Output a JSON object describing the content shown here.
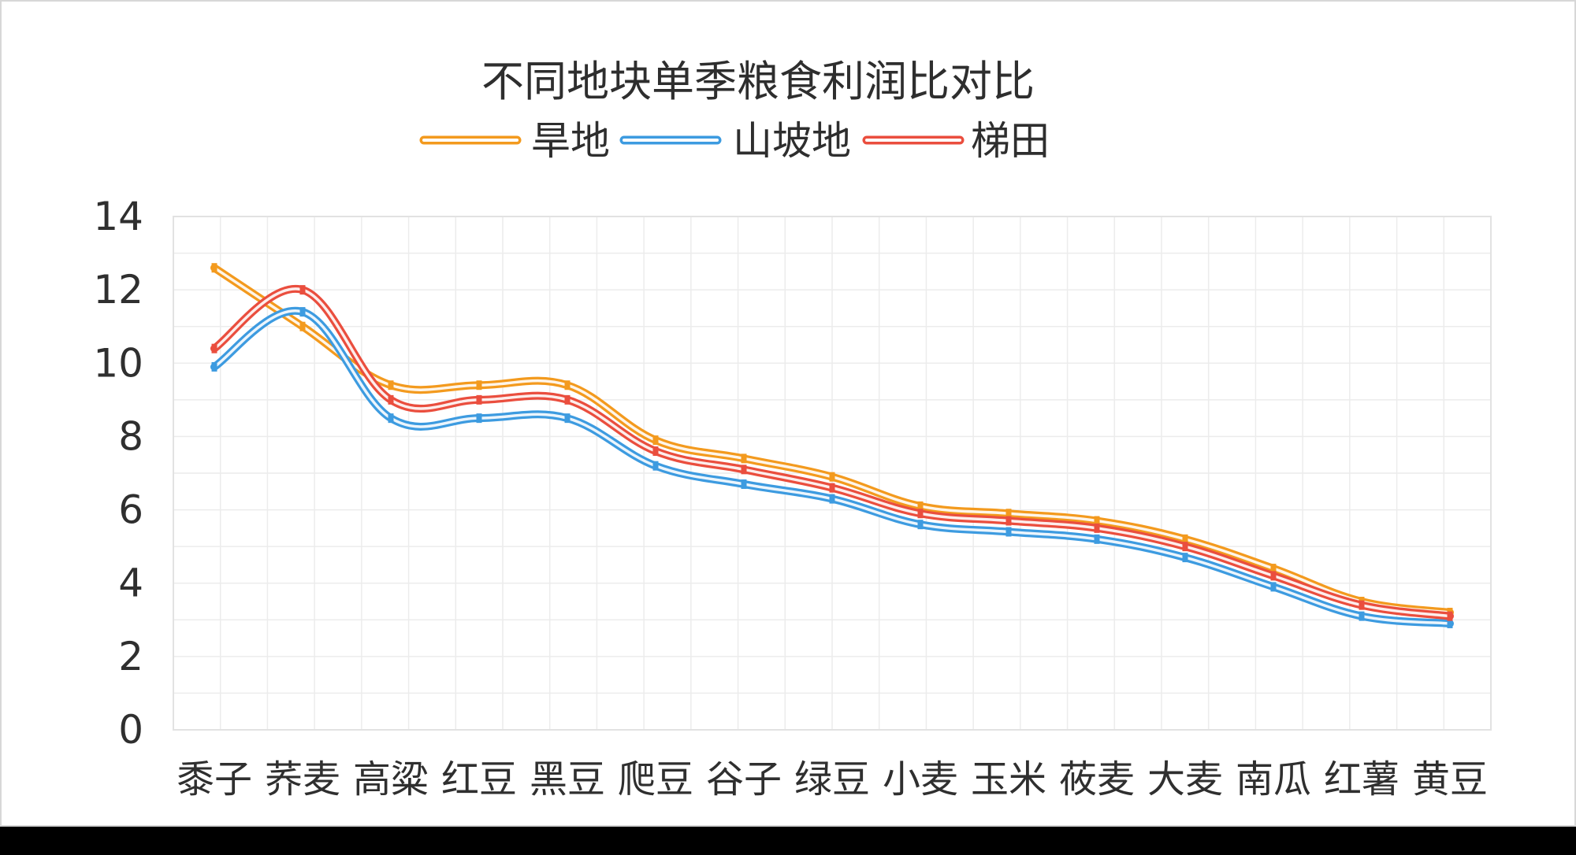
{
  "chart_data": {
    "type": "line",
    "title": "不同地块单季粮食利润比对比",
    "xlabel": "",
    "ylabel": "",
    "ylim": [
      0,
      14
    ],
    "yticks": [
      0,
      2,
      4,
      6,
      8,
      10,
      12,
      14
    ],
    "grid": true,
    "legend_position": "top",
    "smooth": true,
    "categories": [
      "黍子",
      "荞麦",
      "高粱",
      "红豆",
      "黑豆",
      "爬豆",
      "谷子",
      "绿豆",
      "小麦",
      "玉米",
      "莜麦",
      "大麦",
      "南瓜",
      "红薯",
      "黄豆"
    ],
    "series": [
      {
        "name": "旱地",
        "color": "#f39a1e",
        "values": [
          12.6,
          11.0,
          9.4,
          9.4,
          9.4,
          7.9,
          7.4,
          6.9,
          6.1,
          5.9,
          5.7,
          5.2,
          4.4,
          3.5,
          3.2
        ]
      },
      {
        "name": "山坡地",
        "color": "#3d9be0",
        "values": [
          9.9,
          11.4,
          8.5,
          8.5,
          8.5,
          7.2,
          6.7,
          6.3,
          5.6,
          5.4,
          5.2,
          4.7,
          3.9,
          3.1,
          2.9
        ]
      },
      {
        "name": "梯田",
        "color": "#ea4e3e",
        "values": [
          10.4,
          12.0,
          9.0,
          9.0,
          9.0,
          7.6,
          7.1,
          6.6,
          5.9,
          5.7,
          5.5,
          5.0,
          4.2,
          3.4,
          3.1
        ]
      }
    ]
  }
}
